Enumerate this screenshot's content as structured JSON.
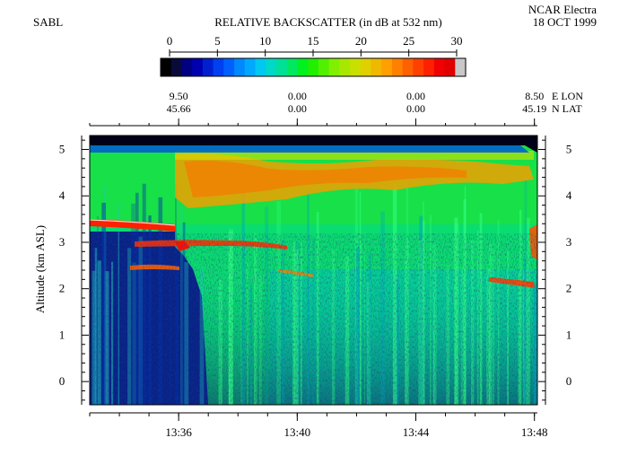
{
  "header": {
    "left_label": "SABL",
    "title": "RELATIVE BACKSCATTER (in dB at 532 nm)",
    "platform": "NCAR Electra",
    "date": "18 OCT 1999"
  },
  "colorbar": {
    "ticks": [
      "0",
      "5",
      "10",
      "15",
      "20",
      "25",
      "30"
    ],
    "min": 0,
    "max": 30,
    "colors": [
      "#000000",
      "#0a0a3a",
      "#000080",
      "#0000b0",
      "#0020d0",
      "#0040f0",
      "#0060ff",
      "#0088ff",
      "#00a8ff",
      "#00c8f0",
      "#00d8c8",
      "#00e098",
      "#00e860",
      "#00f020",
      "#20f000",
      "#50f000",
      "#80f000",
      "#a8e800",
      "#c8e000",
      "#e0d000",
      "#f0b800",
      "#ffa000",
      "#ff8000",
      "#ff6000",
      "#ff4000",
      "#ff2000",
      "#f00000",
      "#e00000",
      "#c8c8c8"
    ]
  },
  "position_axis": {
    "lon_label": "E LON",
    "lat_label": "N LAT",
    "positions": [
      {
        "lon": "9.50",
        "lat": "45.66"
      },
      {
        "lon": "0.00",
        "lat": "0.00"
      },
      {
        "lon": "0.00",
        "lat": "0.00"
      },
      {
        "lon": "8.50",
        "lat": "45.19"
      }
    ]
  },
  "chart_data": {
    "type": "heatmap",
    "title": "RELATIVE BACKSCATTER (in dB at 532 nm)",
    "xlabel": "",
    "ylabel": "Altitude (km ASL)",
    "x_ticks": [
      "13:36",
      "13:40",
      "13:44",
      "13:48"
    ],
    "x_tick_minutes": [
      816,
      820,
      824,
      828
    ],
    "xlim_minutes": [
      813,
      828.1
    ],
    "y_ticks": [
      "0",
      "1",
      "2",
      "3",
      "4",
      "5"
    ],
    "ylim": [
      -0.5,
      5.3
    ],
    "colorbar_range": [
      0,
      30
    ],
    "grid": false
  }
}
